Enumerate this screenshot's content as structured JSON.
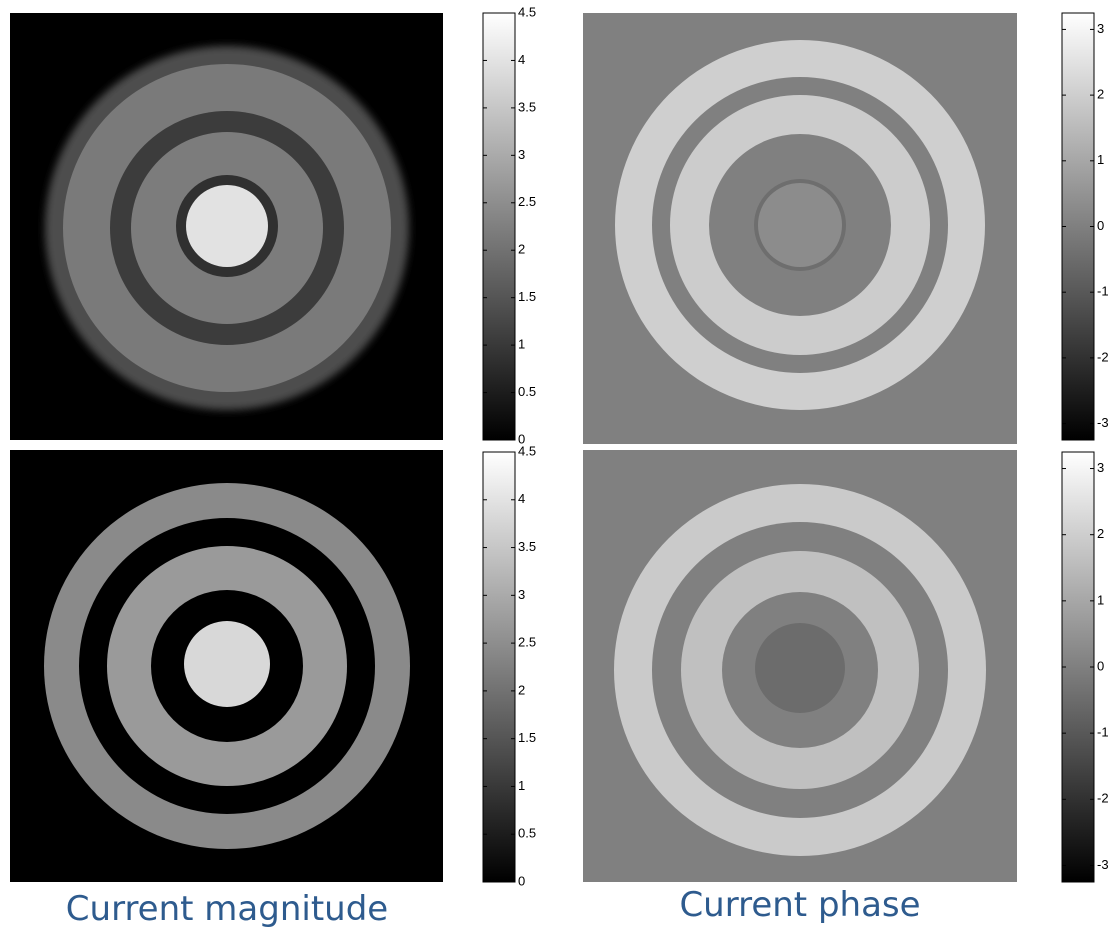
{
  "colorbars": [
    {
      "lim": [
        0,
        4.5
      ],
      "ticks": [
        0,
        0.5,
        1,
        1.5,
        2,
        2.5,
        3,
        3.5,
        4,
        4.5
      ]
    },
    {
      "lim": [
        -3.25,
        3.25
      ],
      "ticks": [
        -3,
        -2,
        -1,
        0,
        1,
        2,
        3
      ]
    },
    {
      "lim": [
        0,
        4.5
      ],
      "ticks": [
        0,
        0.5,
        1,
        1.5,
        2,
        2.5,
        3,
        3.5,
        4,
        4.5
      ]
    },
    {
      "lim": [
        -3.25,
        3.25
      ],
      "ticks": [
        -3,
        -2,
        -1,
        0,
        1,
        2,
        3
      ]
    }
  ],
  "captions": [
    "Current magnitude",
    "Current phase"
  ]
}
